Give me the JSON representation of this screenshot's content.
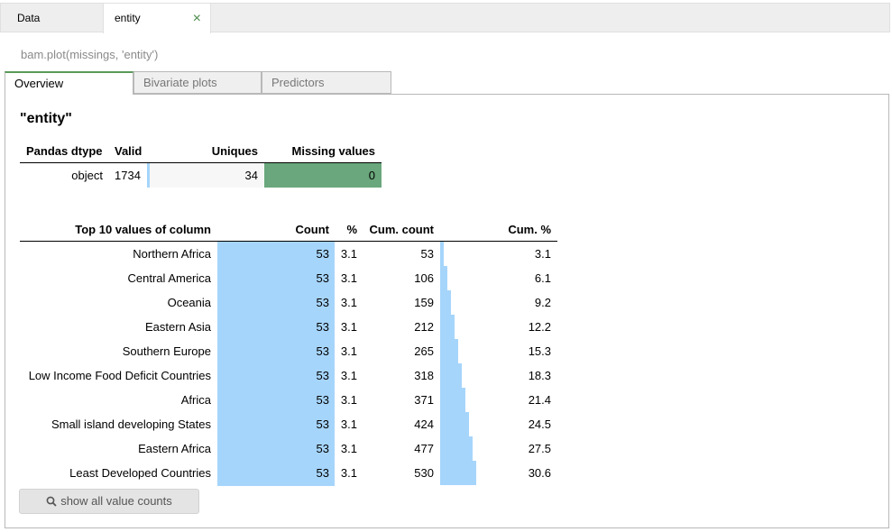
{
  "doc_tabs": [
    {
      "label": "Data"
    },
    {
      "label": "entity",
      "close": "×"
    }
  ],
  "code": "bam.plot(missings, 'entity')",
  "inner_tabs": [
    "Overview",
    "Bivariate plots",
    "Predictors"
  ],
  "title": "\"entity\"",
  "summary": {
    "headers": [
      "Pandas dtype",
      "Valid",
      "Uniques",
      "Missing values"
    ],
    "dtype": "object",
    "valid": "1734",
    "uniques": "34",
    "missing": "0",
    "valid_fraction": 1.0,
    "colors": {
      "bar": "#a6d5fb",
      "missing": "#6aa77c"
    }
  },
  "top_values": {
    "headers": [
      "Top 10 values of column",
      "Count",
      "%",
      "Cum. count",
      "Cum. %"
    ],
    "rows": [
      {
        "name": "Northern Africa",
        "count": "53",
        "pct": "3.1",
        "cum_count": "53",
        "cum_pct": "3.1"
      },
      {
        "name": "Central America",
        "count": "53",
        "pct": "3.1",
        "cum_count": "106",
        "cum_pct": "6.1"
      },
      {
        "name": "Oceania",
        "count": "53",
        "pct": "3.1",
        "cum_count": "159",
        "cum_pct": "9.2"
      },
      {
        "name": "Eastern Asia",
        "count": "53",
        "pct": "3.1",
        "cum_count": "212",
        "cum_pct": "12.2"
      },
      {
        "name": "Southern Europe",
        "count": "53",
        "pct": "3.1",
        "cum_count": "265",
        "cum_pct": "15.3"
      },
      {
        "name": "Low Income Food Deficit Countries",
        "count": "53",
        "pct": "3.1",
        "cum_count": "318",
        "cum_pct": "18.3"
      },
      {
        "name": "Africa",
        "count": "53",
        "pct": "3.1",
        "cum_count": "371",
        "cum_pct": "21.4"
      },
      {
        "name": "Small island developing States",
        "count": "53",
        "pct": "3.1",
        "cum_count": "424",
        "cum_pct": "24.5"
      },
      {
        "name": "Eastern Africa",
        "count": "53",
        "pct": "3.1",
        "cum_count": "477",
        "cum_pct": "27.5"
      },
      {
        "name": "Least Developed Countries",
        "count": "53",
        "pct": "3.1",
        "cum_count": "530",
        "cum_pct": "30.6"
      }
    ]
  },
  "show_button": {
    "label": "show all value counts",
    "icon": "search-icon"
  }
}
